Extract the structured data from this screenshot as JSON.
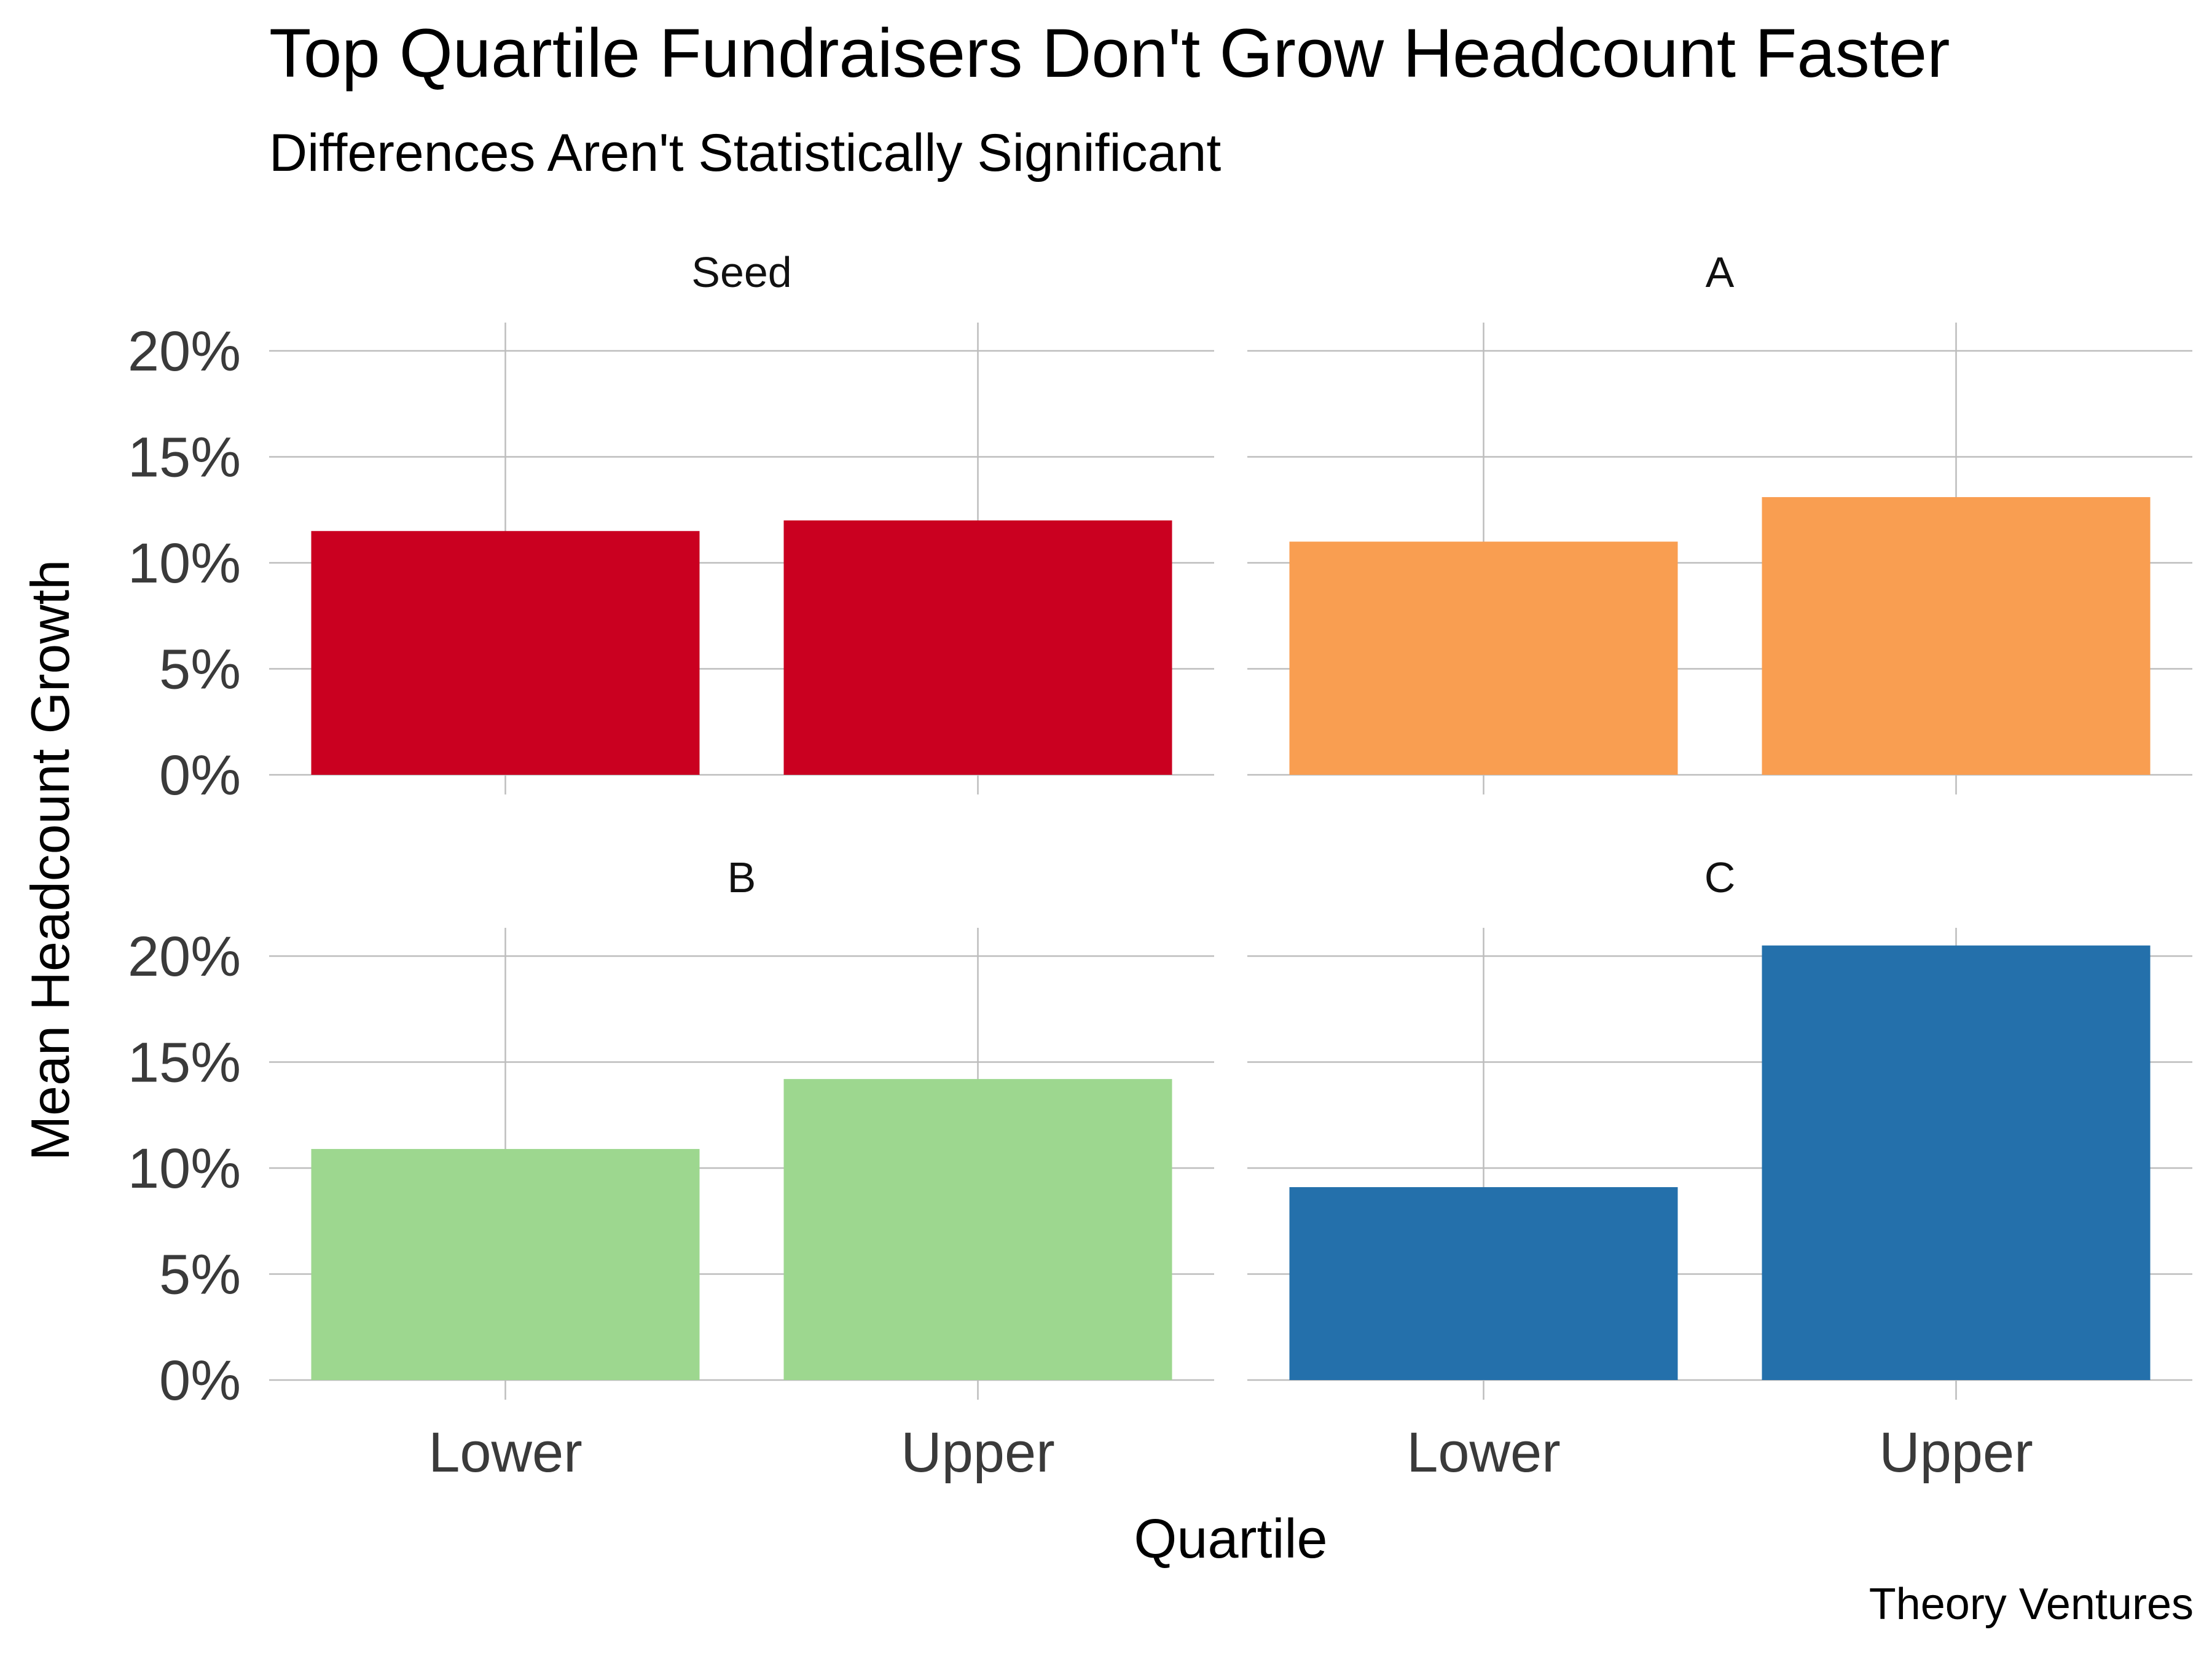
{
  "chart_data": {
    "type": "bar",
    "title": "Top Quartile Fundraisers Don't Grow Headcount Faster",
    "subtitle": "Differences Aren't Statistically Significant",
    "xlabel": "Quartile",
    "ylabel": "Mean Headcount Growth",
    "caption": "Theory Ventures",
    "categories": [
      "Lower",
      "Upper"
    ],
    "ylim": [
      0,
      20
    ],
    "yticks": [
      "0%",
      "5%",
      "10%",
      "15%",
      "20%"
    ],
    "grid": true,
    "legend": "none",
    "facets": [
      {
        "name": "Seed",
        "values": [
          11.5,
          12.0
        ],
        "color": "#ca0020"
      },
      {
        "name": "A",
        "values": [
          11.0,
          13.1
        ],
        "color": "#f99e51"
      },
      {
        "name": "B",
        "values": [
          10.9,
          14.2
        ],
        "color": "#9dd78f"
      },
      {
        "name": "C",
        "values": [
          9.1,
          20.5
        ],
        "color": "#2470ab"
      }
    ]
  }
}
